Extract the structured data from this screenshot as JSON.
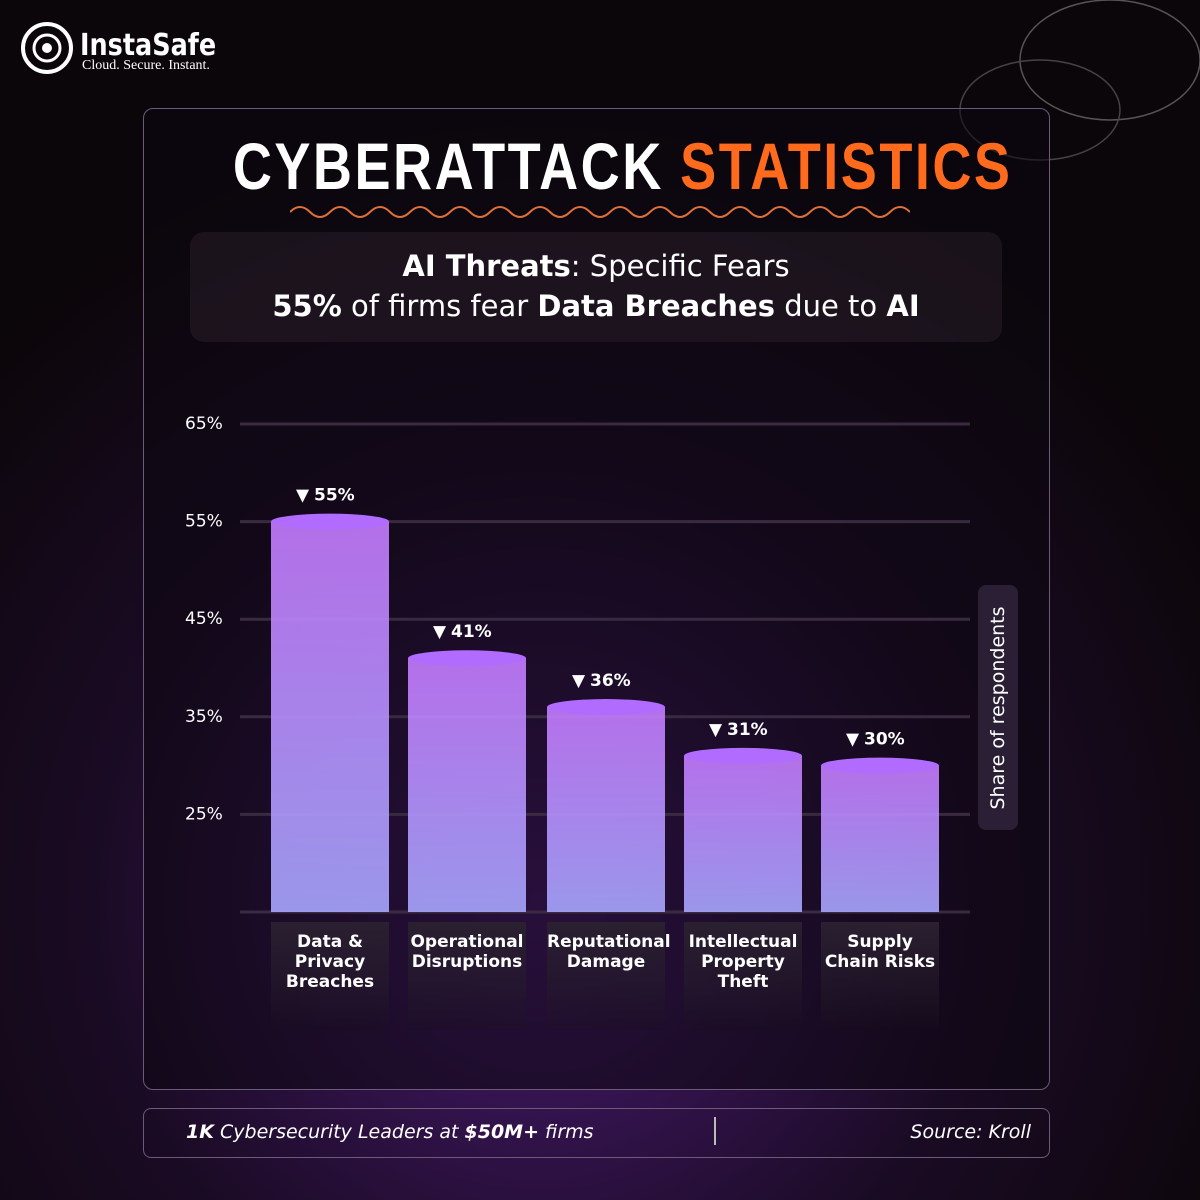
{
  "brand": {
    "name": "InstaSafe",
    "tagline": "Cloud. Secure. Instant."
  },
  "chart_data": {
    "type": "bar",
    "title_segments": [
      {
        "text": "CYBERATTACK",
        "color": "#ffffff"
      },
      {
        "text": "STATISTICS",
        "color": "#ff6a1c"
      }
    ],
    "subtitle_lines": [
      [
        {
          "text": "AI Threats",
          "bold": true
        },
        {
          "text": ": Specific Fears",
          "bold": false
        }
      ],
      [
        {
          "text": "55%",
          "bold": true
        },
        {
          "text": " of firms fear ",
          "bold": false
        },
        {
          "text": "Data Breaches",
          "bold": true
        },
        {
          "text": " due to ",
          "bold": false
        },
        {
          "text": "AI",
          "bold": true
        }
      ]
    ],
    "y_axis_label": "Share of respondents",
    "categories": [
      "Data & Privacy Breaches",
      "Operational Disruptions",
      "Reputational Damage",
      "Intellectual Property Theft",
      "Supply Chain Risks"
    ],
    "values": [
      55,
      41,
      36,
      31,
      30
    ],
    "value_labels": [
      "55%",
      "41%",
      "36%",
      "31%",
      "30%"
    ],
    "color": "#b16cff",
    "ylim": [
      15,
      65
    ],
    "yticks": [
      {
        "value": 25,
        "label": "25%"
      },
      {
        "value": 35,
        "label": "35%"
      },
      {
        "value": 45,
        "label": "45%"
      },
      {
        "value": 55,
        "label": "55%"
      },
      {
        "value": 65,
        "label": "65%"
      }
    ],
    "grid": true
  },
  "footer": {
    "note": [
      {
        "text": "1K",
        "bold": true
      },
      {
        "text": " Cybersecurity Leaders at ",
        "bold": false
      },
      {
        "text": "$50M+",
        "bold": true
      },
      {
        "text": " firms",
        "bold": false
      }
    ],
    "source": "Source: Kroll"
  }
}
